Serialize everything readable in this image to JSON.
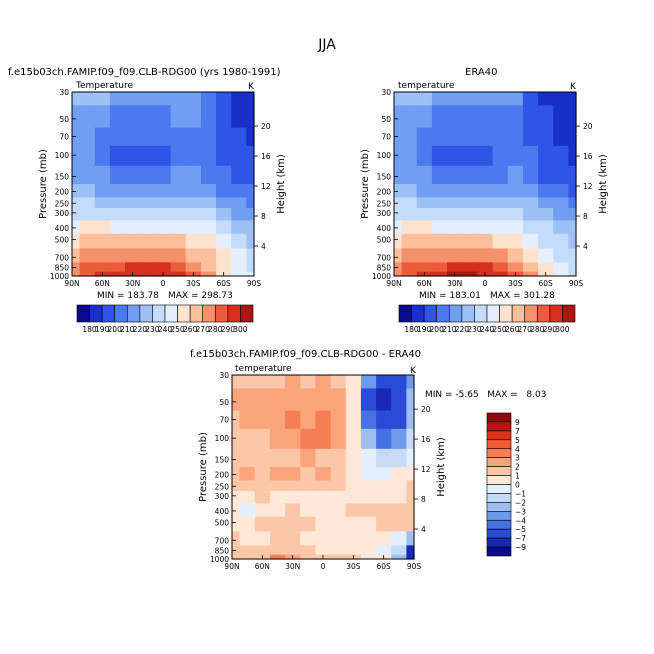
{
  "season": "JJA",
  "panels": [
    {
      "id": "model",
      "title": "f.e15b03ch.FAMIP.f09_f09.CLB-RDG00 (yrs 1980-1991)",
      "variable": "Temperature",
      "units": "K",
      "min_label": "MIN = 183.78",
      "max_label": "MAX = 298.73"
    },
    {
      "id": "obs",
      "title": "ERA40",
      "variable": "temperature",
      "units": "K",
      "min_label": "MIN = 183.01",
      "max_label": "MAX = 301.28"
    },
    {
      "id": "diff",
      "title": "f.e15b03ch.FAMIP.f09_f09.CLB-RDG00 - ERA40",
      "variable": "temperature",
      "units": "K",
      "minmax_label": "MIN = -5.65   MAX =   8.03"
    }
  ],
  "axes": {
    "ylabel": "Pressure (mb)",
    "y2label": "Height (km)",
    "pressure_ticks": [
      "30",
      "50",
      "70",
      "100",
      "150",
      "200",
      "250",
      "300",
      "400",
      "500",
      "700",
      "850",
      "1000"
    ],
    "height_ticks": [
      "20",
      "16",
      "12",
      "8",
      "4"
    ],
    "lat_ticks": [
      "90N",
      "60N",
      "30N",
      "0",
      "30S",
      "60S",
      "90S"
    ]
  },
  "colorbars": {
    "temp_labels": [
      "180",
      "190",
      "200",
      "210",
      "220",
      "230",
      "240",
      "250",
      "260",
      "270",
      "280",
      "290",
      "300"
    ],
    "temp_colors": [
      "#0a0a8c",
      "#1930c8",
      "#2e55e6",
      "#4a7aee",
      "#6f9ef2",
      "#9dc0f5",
      "#c4dbfa",
      "#e4effd",
      "#fde2cf",
      "#fbbf9b",
      "#f6906a",
      "#ec5c3c",
      "#d4301d",
      "#a81711"
    ],
    "diff_labels": [
      "9",
      "7",
      "5",
      "4",
      "3",
      "2",
      "1",
      "0",
      "−1",
      "−2",
      "−3",
      "−4",
      "−5",
      "−7",
      "−9"
    ],
    "diff_colors": [
      "#8c0a0a",
      "#b8160f",
      "#da331b",
      "#ef5b34",
      "#f57e54",
      "#f9a47b",
      "#fcc7a8",
      "#fde8d8",
      "#e4effd",
      "#c6dbf8",
      "#9ebef2",
      "#6f9aec",
      "#4672e4",
      "#2b4bd6",
      "#1a28b8",
      "#0a0a8c"
    ]
  },
  "chart_data": [
    {
      "type": "heatmap",
      "title": "f.e15b03ch.FAMIP.f09_f09.CLB-RDG00 (yrs 1980-1991)",
      "subtitle": "Temperature (K), JJA zonal mean",
      "x": [
        "90N",
        "60N",
        "30N",
        "0",
        "30S",
        "60S",
        "90S"
      ],
      "y": [
        30,
        50,
        70,
        100,
        150,
        200,
        250,
        300,
        400,
        500,
        700,
        850,
        1000
      ],
      "xlabel": "",
      "ylabel": "Pressure (mb)",
      "y2label": "Height (km)",
      "min": 183.78,
      "max": 298.73,
      "levels": [
        180,
        190,
        200,
        210,
        220,
        230,
        240,
        250,
        260,
        270,
        280,
        290,
        300
      ],
      "values": [
        [
          220,
          222,
          220,
          216,
          212,
          212,
          214,
          216,
          212,
          200,
          190,
          186,
          184
        ],
        [
          216,
          218,
          212,
          206,
          204,
          204,
          206,
          210,
          210,
          200,
          192,
          188,
          186
        ],
        [
          214,
          216,
          208,
          202,
          200,
          200,
          202,
          206,
          208,
          200,
          194,
          190,
          188
        ],
        [
          214,
          214,
          206,
          198,
          196,
          196,
          198,
          204,
          208,
          202,
          196,
          192,
          190
        ],
        [
          216,
          216,
          210,
          204,
          202,
          202,
          204,
          210,
          212,
          206,
          200,
          196,
          194
        ],
        [
          222,
          222,
          218,
          214,
          212,
          212,
          214,
          218,
          218,
          214,
          208,
          204,
          200
        ],
        [
          230,
          230,
          226,
          222,
          220,
          220,
          222,
          226,
          226,
          222,
          216,
          212,
          208
        ],
        [
          236,
          238,
          236,
          232,
          230,
          230,
          232,
          236,
          234,
          230,
          224,
          218,
          214
        ],
        [
          248,
          250,
          250,
          248,
          247,
          247,
          248,
          248,
          246,
          240,
          232,
          226,
          222
        ],
        [
          256,
          260,
          262,
          262,
          261,
          261,
          262,
          260,
          256,
          250,
          240,
          232,
          228
        ],
        [
          266,
          272,
          276,
          278,
          278,
          278,
          278,
          274,
          268,
          260,
          250,
          240,
          234
        ],
        [
          272,
          280,
          286,
          288,
          290,
          290,
          290,
          286,
          278,
          268,
          256,
          244,
          238
        ],
        [
          274,
          284,
          292,
          296,
          298,
          298,
          296,
          292,
          284,
          272,
          258,
          246,
          240
        ]
      ]
    },
    {
      "type": "heatmap",
      "title": "ERA40",
      "subtitle": "temperature (K), JJA zonal mean",
      "x": [
        "90N",
        "60N",
        "30N",
        "0",
        "30S",
        "60S",
        "90S"
      ],
      "y": [
        30,
        50,
        70,
        100,
        150,
        200,
        250,
        300,
        400,
        500,
        700,
        850,
        1000
      ],
      "xlabel": "",
      "ylabel": "Pressure (mb)",
      "y2label": "Height (km)",
      "min": 183.01,
      "max": 301.28,
      "levels": [
        180,
        190,
        200,
        210,
        220,
        230,
        240,
        250,
        260,
        270,
        280,
        290,
        300
      ],
      "values": [
        [
          220,
          222,
          220,
          216,
          212,
          212,
          214,
          214,
          210,
          198,
          188,
          185,
          183
        ],
        [
          216,
          218,
          212,
          206,
          204,
          204,
          206,
          208,
          208,
          198,
          190,
          186,
          184
        ],
        [
          214,
          216,
          208,
          202,
          200,
          200,
          202,
          204,
          206,
          198,
          192,
          188,
          186
        ],
        [
          214,
          214,
          206,
          198,
          196,
          196,
          198,
          202,
          206,
          200,
          194,
          190,
          188
        ],
        [
          216,
          216,
          210,
          204,
          202,
          202,
          204,
          208,
          210,
          204,
          198,
          194,
          192
        ],
        [
          222,
          222,
          218,
          214,
          212,
          212,
          214,
          216,
          216,
          212,
          206,
          202,
          198
        ],
        [
          230,
          230,
          226,
          222,
          220,
          220,
          222,
          224,
          224,
          220,
          214,
          210,
          206
        ],
        [
          236,
          238,
          236,
          232,
          230,
          230,
          232,
          234,
          232,
          228,
          222,
          216,
          212
        ],
        [
          248,
          250,
          250,
          248,
          247,
          247,
          248,
          246,
          244,
          238,
          230,
          224,
          220
        ],
        [
          256,
          260,
          262,
          262,
          261,
          261,
          262,
          258,
          254,
          248,
          238,
          230,
          226
        ],
        [
          266,
          272,
          276,
          278,
          278,
          278,
          278,
          272,
          266,
          258,
          248,
          238,
          232
        ],
        [
          272,
          280,
          286,
          288,
          290,
          290,
          290,
          284,
          276,
          266,
          254,
          242,
          236
        ],
        [
          274,
          284,
          292,
          296,
          300,
          300,
          298,
          292,
          284,
          272,
          258,
          244,
          238
        ]
      ]
    },
    {
      "type": "heatmap",
      "title": "f.e15b03ch.FAMIP.f09_f09.CLB-RDG00 - ERA40",
      "subtitle": "temperature difference (K)",
      "x": [
        "90N",
        "60N",
        "30N",
        "0",
        "30S",
        "60S",
        "90S"
      ],
      "y": [
        30,
        50,
        70,
        100,
        150,
        200,
        250,
        300,
        400,
        500,
        700,
        850,
        1000
      ],
      "xlabel": "",
      "ylabel": "Pressure (mb)",
      "y2label": "Height (km)",
      "min": -5.65,
      "max": 8.03,
      "levels": [
        -9,
        -7,
        -5,
        -4,
        -3,
        -2,
        -1,
        0,
        1,
        2,
        3,
        4,
        5,
        7,
        9
      ],
      "values": [
        [
          -1.5,
          -1.8,
          -2,
          -1.8,
          -2.2,
          -2,
          -2.2,
          -1.5,
          -0.5,
          3,
          5,
          6,
          3
        ],
        [
          -2.2,
          -2.5,
          -2.2,
          -2.5,
          -3,
          -2.8,
          -3,
          -2.5,
          -1,
          5,
          8,
          6,
          2
        ],
        [
          -1.8,
          -2.2,
          -2.5,
          -3,
          -3.5,
          -3,
          -3.2,
          -2.5,
          -1,
          4,
          6.5,
          5,
          2
        ],
        [
          -1.2,
          -1.8,
          -2,
          -2.5,
          -3,
          -4,
          -3.5,
          -2.5,
          -0.5,
          2,
          4,
          3,
          1
        ],
        [
          -1.5,
          -1.5,
          -1.2,
          -1.5,
          -2,
          -2.5,
          -2,
          -1.8,
          -0.5,
          0.5,
          1.5,
          1,
          0
        ],
        [
          -2,
          -2.2,
          -1.5,
          -2.5,
          -2.8,
          -2,
          -2.2,
          -2,
          -1,
          0,
          0.5,
          -0.5,
          -1
        ],
        [
          -1.5,
          -1.5,
          -1.5,
          -1.2,
          -1.5,
          -1.8,
          -1.5,
          -1.2,
          -0.5,
          -0.5,
          -0.5,
          -1,
          -1.5
        ],
        [
          -1,
          -1,
          -1.2,
          -0.8,
          -0.8,
          -1,
          -0.8,
          -1,
          -1,
          -1,
          -1,
          -1,
          -1.2
        ],
        [
          -0.5,
          0.5,
          -0.5,
          -1,
          -1.2,
          -1,
          -1,
          -1,
          -1.2,
          -1.2,
          -1.5,
          -1.5,
          -1.5
        ],
        [
          -1,
          -1,
          -1.5,
          -1.5,
          -1.2,
          -1.2,
          -1,
          -1,
          -1,
          -1,
          -1.2,
          -1.2,
          -2
        ],
        [
          -1.5,
          -1,
          -1,
          -1.2,
          -1.2,
          -1,
          -1,
          -1,
          -1,
          -1,
          -1,
          0.5,
          2
        ],
        [
          -1.5,
          -1.2,
          -1.2,
          -1.5,
          -1.5,
          -1.2,
          -1,
          -1,
          -1,
          -0.5,
          0,
          1.5,
          7
        ],
        [
          -1.2,
          -1.2,
          -1.5,
          -3.5,
          -3,
          -2,
          -2,
          -1.5,
          -1.5,
          -1,
          -0.5,
          2,
          8
        ]
      ]
    }
  ]
}
